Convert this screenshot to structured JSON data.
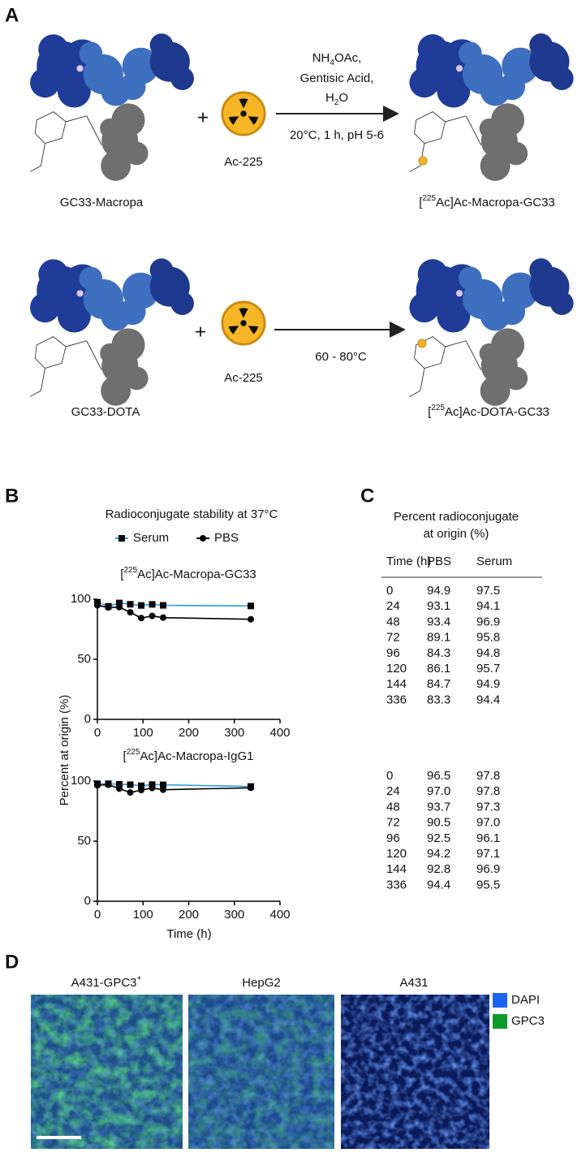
{
  "panel_labels": [
    "A",
    "B",
    "C",
    "D"
  ],
  "scheme": {
    "row1": {
      "reactant": "GC33-Macropa",
      "plus": "+",
      "isotope": "Ac-225",
      "conditions": {
        "line1": [
          "NH",
          "4",
          "OAc,"
        ],
        "line2": "Gentisic Acid,",
        "line3": [
          "H",
          "2",
          "O"
        ],
        "below": "20°C, 1 h, pH 5-6"
      },
      "product": [
        "[",
        "225",
        "Ac]Ac-Macropa-GC33"
      ]
    },
    "row2": {
      "reactant": "GC33-DOTA",
      "plus": "+",
      "isotope": "Ac-225",
      "conditions": {
        "below": "60 - 80°C"
      },
      "product": [
        "[",
        "225",
        "Ac]Ac-DOTA-GC33"
      ]
    }
  },
  "chart_data": [
    {
      "type": "line",
      "title": "Radioconjugate stability at 37°C",
      "subtitle": [
        "[",
        "225",
        "Ac]Ac-Macropa-GC33"
      ],
      "y_label": "Percent  at origin  (%)",
      "x": [
        0,
        24,
        48,
        72,
        96,
        120,
        144,
        336
      ],
      "series": [
        {
          "name": "Serum",
          "color": "#2f9be0",
          "marker": "square",
          "marker_color": "#000000",
          "values": [
            97.5,
            94.1,
            96.9,
            95.8,
            94.8,
            95.7,
            94.9,
            94.4
          ]
        },
        {
          "name": "PBS",
          "color": "#000000",
          "marker": "circle",
          "marker_color": "#000000",
          "values": [
            94.9,
            93.1,
            93.4,
            89.1,
            84.3,
            86.1,
            84.7,
            83.3
          ]
        }
      ],
      "xlim": [
        0,
        400
      ],
      "xticks": [
        0,
        100,
        200,
        300,
        400
      ],
      "ylim": [
        0,
        100
      ],
      "yticks": [
        0,
        50,
        100
      ]
    },
    {
      "type": "line",
      "subtitle": [
        "[",
        "225",
        "Ac]Ac-Macropa-IgG1"
      ],
      "x_label": "Time (h)",
      "x": [
        0,
        24,
        48,
        72,
        96,
        120,
        144,
        336
      ],
      "series": [
        {
          "color": "#2f9be0",
          "marker": "square",
          "marker_color": "#000000",
          "values": [
            97.8,
            97.8,
            97.3,
            97.0,
            96.1,
            97.1,
            96.9,
            95.5
          ]
        },
        {
          "color": "#000000",
          "marker": "circle",
          "marker_color": "#000000",
          "values": [
            96.5,
            97.0,
            93.7,
            90.5,
            92.5,
            94.2,
            92.8,
            94.4
          ]
        }
      ],
      "xlim": [
        0,
        400
      ],
      "xticks": [
        0,
        100,
        200,
        300,
        400
      ],
      "ylim": [
        0,
        100
      ],
      "yticks": [
        0,
        50,
        100
      ]
    }
  ],
  "table": {
    "title": [
      "Percent radioconjugate",
      "at origin (%)"
    ],
    "header": [
      "Time (h)",
      "PBS",
      "Serum"
    ],
    "serum_color": "#2f9be0",
    "groups": [
      [
        [
          "0",
          "94.9",
          "97.5"
        ],
        [
          "24",
          "93.1",
          "94.1"
        ],
        [
          "48",
          "93.4",
          "96.9"
        ],
        [
          "72",
          "89.1",
          "95.8"
        ],
        [
          "96",
          "84.3",
          "94.8"
        ],
        [
          "120",
          "86.1",
          "95.7"
        ],
        [
          "144",
          "84.7",
          "94.9"
        ],
        [
          "336",
          "83.3",
          "94.4"
        ]
      ],
      [
        [
          "0",
          "96.5",
          "97.8"
        ],
        [
          "24",
          "97.0",
          "97.8"
        ],
        [
          "48",
          "93.7",
          "97.3"
        ],
        [
          "72",
          "90.5",
          "97.0"
        ],
        [
          "96",
          "92.5",
          "96.1"
        ],
        [
          "120",
          "94.2",
          "97.1"
        ],
        [
          "144",
          "92.8",
          "96.9"
        ],
        [
          "336",
          "94.4",
          "95.5"
        ]
      ]
    ]
  },
  "microscopy": {
    "labels": [
      [
        "A431-GPC3",
        "+"
      ],
      "HepG2",
      "A431"
    ],
    "legend": [
      {
        "name": "DAPI",
        "color": "#1c64f0"
      },
      {
        "name": "GPC3",
        "color": "#0c9a2c"
      }
    ]
  }
}
